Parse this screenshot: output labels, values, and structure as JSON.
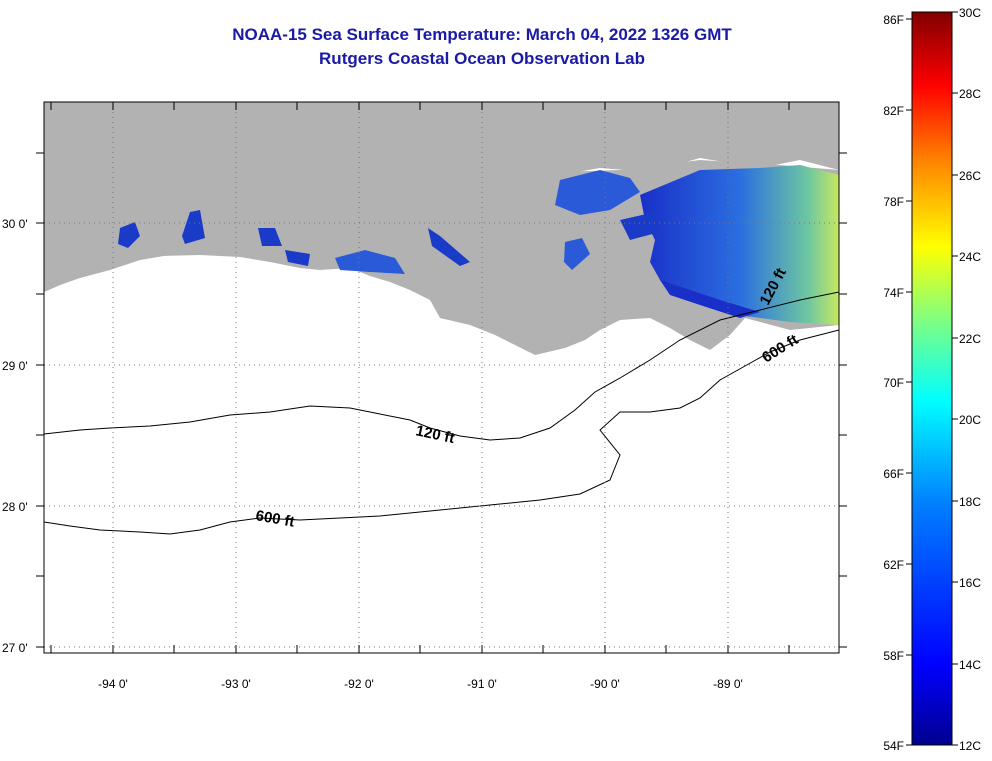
{
  "title_line1": "NOAA-15 Sea Surface Temperature:  March 04, 2022 1326 GMT",
  "title_line2": "Rutgers Coastal Ocean Observation Lab",
  "map": {
    "lon_ticks": [
      "-94 0'",
      "-93 0'",
      "-92 0'",
      "-91 0'",
      "-90 0'",
      "-89 0'"
    ],
    "lat_ticks": [
      "30 0'",
      "29 0'",
      "28 0'",
      "27 0'"
    ],
    "contour_labels": [
      "120 ft",
      "120 ft",
      "600 ft",
      "600 ft"
    ],
    "colors": {
      "land": "#b2b2b2",
      "ocean_nodata": "#ffffff",
      "grid": "#555555"
    }
  },
  "colorbar": {
    "fahrenheit_labels": [
      "86F",
      "82F",
      "78F",
      "74F",
      "70F",
      "66F",
      "62F",
      "58F",
      "54F"
    ],
    "celsius_labels": [
      "30C",
      "28C",
      "26C",
      "24C",
      "22C",
      "20C",
      "18C",
      "16C",
      "14C",
      "12C"
    ],
    "colors": [
      "#800000",
      "#ff0000",
      "#ff8000",
      "#ffff00",
      "#80ff80",
      "#00ffff",
      "#0080ff",
      "#0000ff",
      "#00008f"
    ]
  }
}
